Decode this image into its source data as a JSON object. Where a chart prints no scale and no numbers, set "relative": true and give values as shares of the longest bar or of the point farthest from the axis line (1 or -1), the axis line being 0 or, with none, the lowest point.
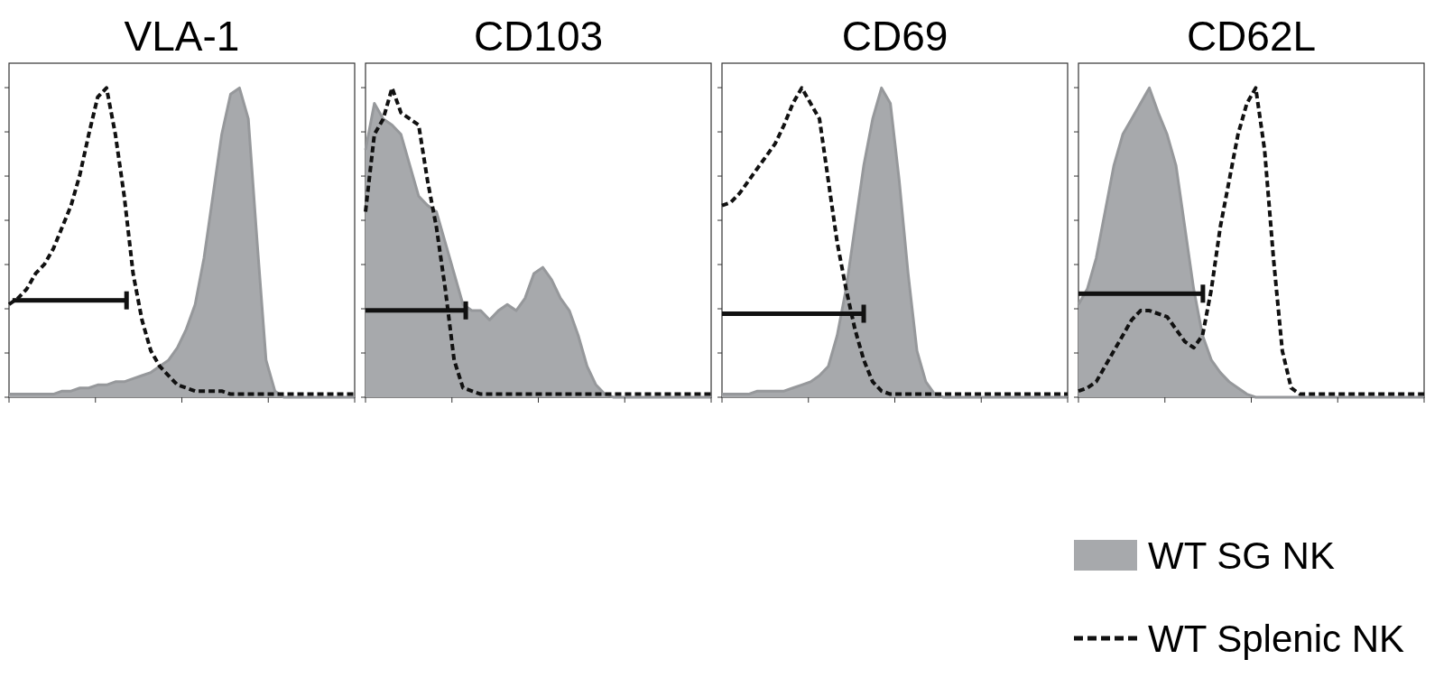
{
  "chart_data": [
    {
      "type": "area",
      "title": "VLA-1",
      "relative": true,
      "grid": false,
      "categories": [
        null,
        null,
        null,
        null,
        null,
        null,
        null,
        null,
        null,
        null,
        null,
        null,
        null,
        null,
        null,
        null,
        null,
        null,
        null,
        null,
        null,
        null,
        null,
        null,
        null,
        null,
        null,
        null,
        null,
        null,
        null,
        null,
        null,
        null,
        null,
        null,
        null,
        null,
        null,
        null
      ],
      "series": [
        {
          "color": "#a7a9ac",
          "values": [
            0.01,
            0.01,
            0.01,
            0.01,
            0.01,
            0.01,
            0.02,
            0.02,
            0.03,
            0.03,
            0.04,
            0.04,
            0.05,
            0.05,
            0.06,
            0.07,
            0.08,
            0.1,
            0.12,
            0.16,
            0.22,
            0.3,
            0.45,
            0.65,
            0.85,
            0.98,
            1,
            0.9,
            0.5,
            0.12,
            0.02,
            0,
            0,
            0,
            0,
            0,
            0,
            0,
            0,
            0
          ]
        },
        {
          "type": "line",
          "line_style": "dashed",
          "color": "#111111",
          "values": [
            0.3,
            0.32,
            0.35,
            0.4,
            0.43,
            0.48,
            0.55,
            0.62,
            0.72,
            0.85,
            0.97,
            1,
            0.85,
            0.65,
            0.4,
            0.25,
            0.15,
            0.1,
            0.07,
            0.04,
            0.03,
            0.02,
            0.02,
            0.02,
            0.02,
            0.01,
            0.01,
            0.01,
            0.01,
            0.01,
            0.01,
            0.01,
            0.01,
            0.01,
            0.01,
            0.01,
            0.01,
            0.01,
            0.01,
            0.01
          ]
        }
      ]
    },
    {
      "type": "area",
      "title": "CD103",
      "relative": true,
      "grid": false,
      "categories": [
        null,
        null,
        null,
        null,
        null,
        null,
        null,
        null,
        null,
        null,
        null,
        null,
        null,
        null,
        null,
        null,
        null,
        null,
        null,
        null,
        null,
        null,
        null,
        null,
        null,
        null,
        null,
        null,
        null,
        null,
        null,
        null,
        null,
        null,
        null,
        null,
        null,
        null,
        null,
        null
      ],
      "series": [
        {
          "color": "#a7a9ac",
          "values": [
            0.8,
            0.95,
            0.9,
            0.88,
            0.85,
            0.75,
            0.65,
            0.62,
            0.6,
            0.5,
            0.4,
            0.3,
            0.28,
            0.28,
            0.25,
            0.28,
            0.3,
            0.28,
            0.32,
            0.4,
            0.42,
            0.38,
            0.32,
            0.28,
            0.2,
            0.1,
            0.04,
            0.01,
            0,
            0,
            0,
            0,
            0,
            0,
            0,
            0,
            0,
            0,
            0,
            0
          ]
        },
        {
          "type": "line",
          "line_style": "dashed",
          "color": "#111111",
          "values": [
            0.6,
            0.85,
            0.9,
            1,
            0.92,
            0.9,
            0.88,
            0.7,
            0.55,
            0.35,
            0.12,
            0.03,
            0.02,
            0.01,
            0.01,
            0.01,
            0.01,
            0.01,
            0.01,
            0.01,
            0.01,
            0.01,
            0.01,
            0.01,
            0.01,
            0.01,
            0.01,
            0.01,
            0.01,
            0.01,
            0.01,
            0.01,
            0.01,
            0.01,
            0.01,
            0.01,
            0.01,
            0.01,
            0.01,
            0.01
          ]
        }
      ]
    },
    {
      "type": "area",
      "title": "CD69",
      "relative": true,
      "grid": false,
      "categories": [
        null,
        null,
        null,
        null,
        null,
        null,
        null,
        null,
        null,
        null,
        null,
        null,
        null,
        null,
        null,
        null,
        null,
        null,
        null,
        null,
        null,
        null,
        null,
        null,
        null,
        null,
        null,
        null,
        null,
        null,
        null,
        null,
        null,
        null,
        null,
        null,
        null,
        null,
        null,
        null
      ],
      "series": [
        {
          "color": "#a7a9ac",
          "values": [
            0.01,
            0.01,
            0.01,
            0.01,
            0.02,
            0.02,
            0.02,
            0.02,
            0.03,
            0.04,
            0.05,
            0.07,
            0.1,
            0.2,
            0.35,
            0.55,
            0.75,
            0.9,
            1,
            0.95,
            0.7,
            0.4,
            0.15,
            0.05,
            0.01,
            0,
            0,
            0,
            0,
            0,
            0,
            0,
            0,
            0,
            0,
            0,
            0,
            0,
            0,
            0
          ]
        },
        {
          "type": "line",
          "line_style": "dashed",
          "color": "#111111",
          "values": [
            0.62,
            0.63,
            0.66,
            0.7,
            0.74,
            0.78,
            0.82,
            0.88,
            0.95,
            1,
            0.95,
            0.9,
            0.7,
            0.5,
            0.35,
            0.22,
            0.12,
            0.05,
            0.02,
            0.01,
            0.01,
            0.01,
            0.01,
            0.01,
            0.01,
            0.01,
            0.01,
            0.01,
            0.01,
            0.01,
            0.01,
            0.01,
            0.01,
            0.01,
            0.01,
            0.01,
            0.01,
            0.01,
            0.01,
            0.01
          ]
        }
      ]
    },
    {
      "type": "area",
      "title": "CD62L",
      "relative": true,
      "grid": false,
      "legend": "bottom right",
      "categories": [
        null,
        null,
        null,
        null,
        null,
        null,
        null,
        null,
        null,
        null,
        null,
        null,
        null,
        null,
        null,
        null,
        null,
        null,
        null,
        null,
        null,
        null,
        null,
        null,
        null,
        null,
        null,
        null,
        null,
        null,
        null,
        null,
        null,
        null,
        null,
        null,
        null,
        null,
        null,
        null
      ],
      "series": [
        {
          "name": "WT SG NK",
          "color": "#a7a9ac",
          "values": [
            0.3,
            0.35,
            0.45,
            0.6,
            0.75,
            0.85,
            0.9,
            0.95,
            1,
            0.92,
            0.85,
            0.75,
            0.55,
            0.35,
            0.2,
            0.12,
            0.08,
            0.05,
            0.03,
            0.01,
            0,
            0,
            0,
            0,
            0,
            0,
            0,
            0,
            0,
            0,
            0,
            0,
            0,
            0,
            0,
            0,
            0,
            0,
            0,
            0
          ]
        },
        {
          "name": "WT Splenic NK",
          "type": "line",
          "line_style": "dashed",
          "color": "#111111",
          "values": [
            0.02,
            0.03,
            0.05,
            0.1,
            0.15,
            0.2,
            0.25,
            0.28,
            0.28,
            0.27,
            0.26,
            0.22,
            0.18,
            0.16,
            0.2,
            0.35,
            0.55,
            0.7,
            0.85,
            0.95,
            1,
            0.8,
            0.45,
            0.15,
            0.03,
            0.01,
            0.01,
            0.01,
            0.01,
            0.01,
            0.01,
            0.01,
            0.01,
            0.01,
            0.01,
            0.01,
            0.01,
            0.01,
            0.01,
            0.01
          ]
        }
      ]
    }
  ]
}
